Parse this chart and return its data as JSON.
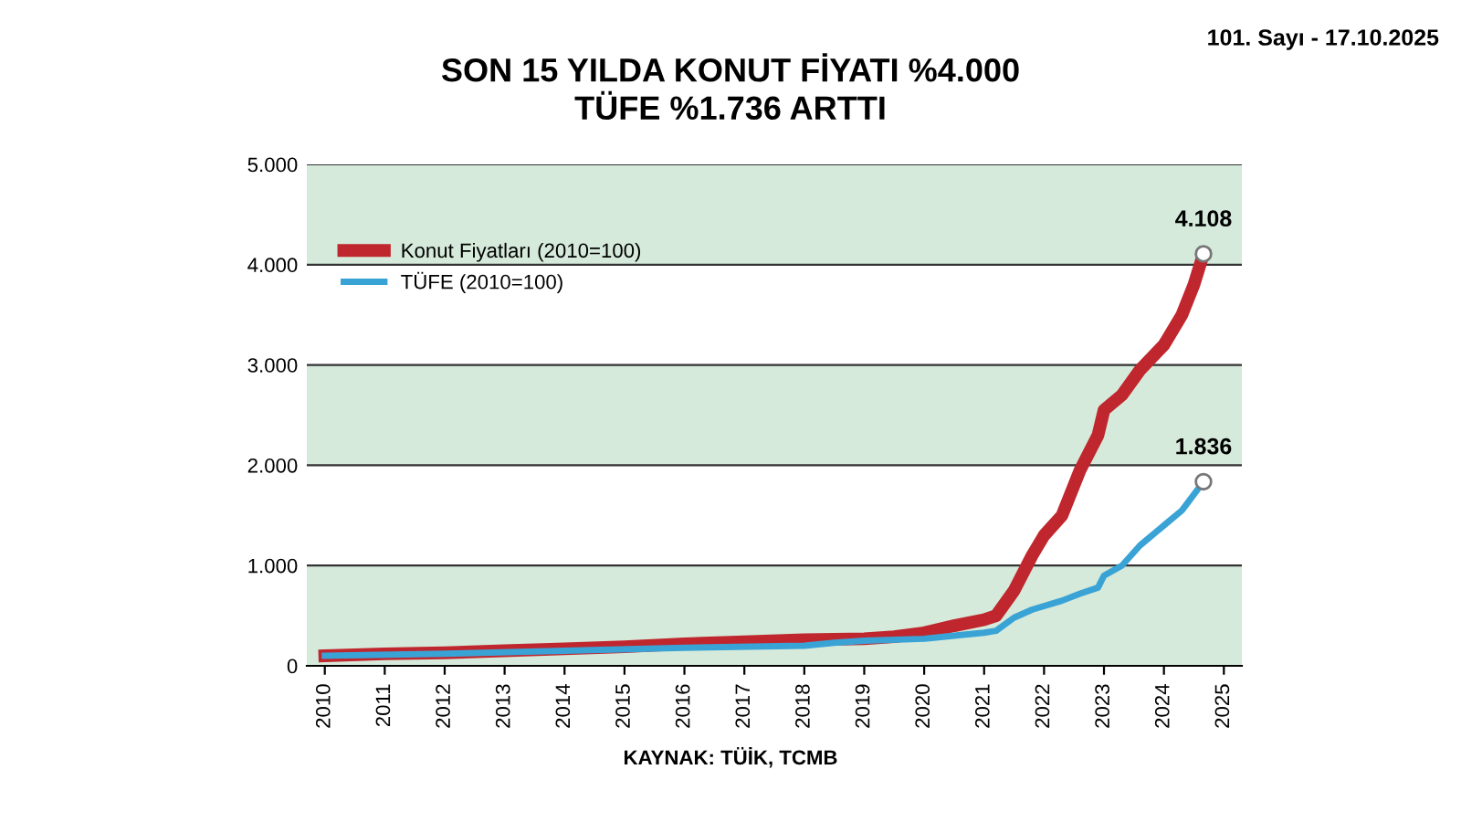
{
  "chart_data": {
    "type": "line",
    "title": "SON 15 YILDA KONUT FİYATI %4.000\nTÜFE %1.736 ARTTI",
    "xlim": [
      2009.7,
      2025.3
    ],
    "xticks": [
      {
        "value": 2010,
        "label": "2010"
      },
      {
        "value": 2011,
        "label": "2011"
      },
      {
        "value": 2012,
        "label": "2012"
      },
      {
        "value": 2013,
        "label": "2013"
      },
      {
        "value": 2014,
        "label": "2014"
      },
      {
        "value": 2015,
        "label": "2015"
      },
      {
        "value": 2016,
        "label": "2016"
      },
      {
        "value": 2017,
        "label": "2017"
      },
      {
        "value": 2018,
        "label": "2018"
      },
      {
        "value": 2019,
        "label": "2019"
      },
      {
        "value": 2020,
        "label": "2020"
      },
      {
        "value": 2021,
        "label": "2021"
      },
      {
        "value": 2022,
        "label": "2022"
      },
      {
        "value": 2023,
        "label": "2023"
      },
      {
        "value": 2024,
        "label": "2024"
      },
      {
        "value": 2025,
        "label": "2025"
      }
    ],
    "ylim": [
      0,
      5000
    ],
    "yticks": [
      0,
      {
        "value": 1000,
        "label": "1.000"
      },
      {
        "value": 2000,
        "label": "2.000"
      },
      {
        "value": 3000,
        "label": "3.000"
      },
      {
        "value": 4000,
        "label": "4.000"
      },
      {
        "value": 5000,
        "label": "5.000"
      }
    ],
    "grid": "y",
    "legend": "top left",
    "bands": [
      {
        "axis": "y",
        "from": 0,
        "to": 1000,
        "color": "#d5eadb"
      },
      {
        "axis": "y",
        "from": 2000,
        "to": 3000,
        "color": "#d5eadb"
      },
      {
        "axis": "y",
        "from": 4000,
        "to": 5000,
        "color": "#d5eadb"
      }
    ],
    "series": [
      {
        "name": "Konut Fiyatları (2010=100)",
        "color": "#c0262d",
        "x": [
          2010,
          2011,
          2012,
          2013,
          2014,
          2015,
          2016,
          2017,
          2018,
          2019,
          2019.5,
          2020,
          2020.5,
          2021,
          2021.2,
          2021.5,
          2021.8,
          2022,
          2022.3,
          2022.6,
          2022.9,
          2023,
          2023.3,
          2023.6,
          2024,
          2024.3,
          2024.5,
          2024.66
        ],
        "values": [
          100,
          120,
          130,
          150,
          170,
          190,
          220,
          240,
          260,
          270,
          290,
          330,
          400,
          460,
          500,
          750,
          1100,
          1300,
          1500,
          1950,
          2300,
          2550,
          2700,
          2950,
          3200,
          3500,
          3800,
          4108
        ]
      },
      {
        "name": "TÜFE (2010=100)",
        "color": "#3aa3d6",
        "x": [
          2010,
          2012,
          2014,
          2016,
          2018,
          2018.5,
          2019,
          2020,
          2020.5,
          2021,
          2021.2,
          2021.5,
          2021.8,
          2022.3,
          2022.6,
          2022.9,
          2023,
          2023.3,
          2023.6,
          2024,
          2024.3,
          2024.66
        ],
        "values": [
          100,
          120,
          150,
          180,
          200,
          230,
          250,
          270,
          300,
          330,
          350,
          480,
          560,
          650,
          720,
          780,
          900,
          1000,
          1200,
          1400,
          1550,
          1836
        ]
      }
    ],
    "annotations": [
      {
        "text": "4.108",
        "x": 2024.66,
        "y": 4108
      },
      {
        "text": "1.836",
        "x": 2024.66,
        "y": 1836
      },
      "KAYNAK: TÜİK, TCMB",
      "101. Sayı - 17.10.2025"
    ]
  }
}
